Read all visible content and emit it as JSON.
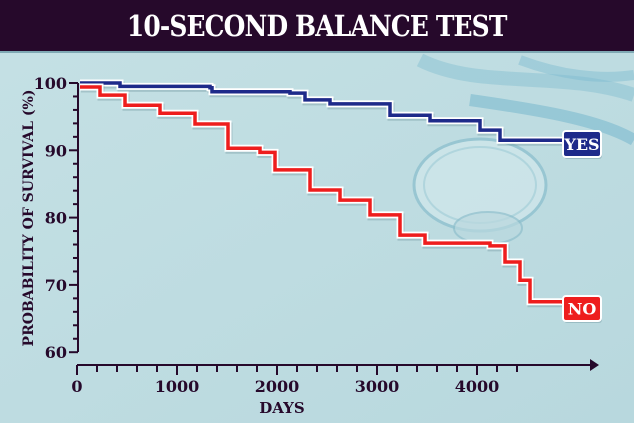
{
  "title": "10-SECOND BALANCE TEST",
  "colors": {
    "title_bg": "#26092b",
    "background": "#bfdde1",
    "yes_line": "#1e2a8a",
    "no_line": "#ee1d1d",
    "axis": "#26092b"
  },
  "labels": {
    "yes": "YES",
    "no": "NO"
  },
  "chart_data": {
    "type": "line",
    "title": "10-SECOND BALANCE TEST",
    "xlabel": "DAYS",
    "ylabel": "PROBABILITY OF SURVIVAL (%)",
    "xlim": [
      0,
      4500
    ],
    "ylim": [
      60,
      100
    ],
    "x_ticks": [
      0,
      1000,
      2000,
      3000,
      4000
    ],
    "x_tick_labels": [
      "0",
      "1000",
      "2000",
      "3000",
      "4000"
    ],
    "y_ticks": [
      60,
      70,
      80,
      90,
      100
    ],
    "y_tick_labels": [
      "60",
      "70",
      "80",
      "90",
      "100"
    ],
    "grid": false,
    "legend": "inline labels at line ends",
    "series": [
      {
        "name": "YES",
        "step": true,
        "x": [
          30,
          430,
          1330,
          1350,
          2130,
          2280,
          2530,
          3130,
          3530,
          4030,
          4230,
          4860
        ],
        "y": [
          100,
          99.5,
          99.3,
          98.7,
          98.5,
          97.5,
          96.9,
          95.2,
          94.4,
          93,
          91.5,
          91.5
        ]
      },
      {
        "name": "NO",
        "step": true,
        "x": [
          30,
          230,
          480,
          830,
          1180,
          1510,
          1830,
          1980,
          2330,
          2630,
          2930,
          3230,
          3480,
          4130,
          4280,
          4430,
          4530,
          4860
        ],
        "y": [
          99.4,
          98.2,
          96.7,
          95.5,
          93.9,
          90.3,
          89.7,
          87.1,
          84.1,
          82.6,
          80.4,
          77.4,
          76.2,
          75.8,
          73.4,
          70.7,
          67.5,
          67.2
        ]
      }
    ]
  }
}
